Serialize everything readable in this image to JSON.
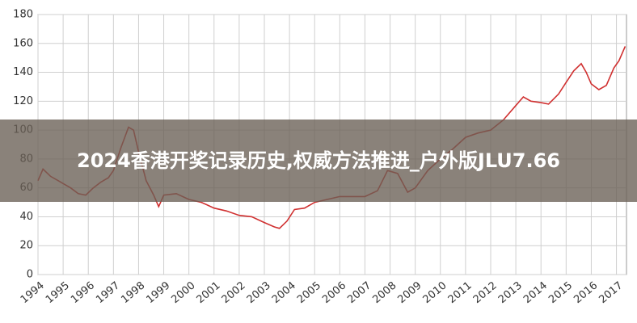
{
  "banner": {
    "title": "2024香港开奖记录历史,权威方法推进_户外版JLU7.66"
  },
  "chart_data": {
    "type": "line",
    "color": "#d03030",
    "grid": true,
    "x": [
      1994.0,
      1994.2,
      1994.5,
      1994.8,
      1995.0,
      1995.3,
      1995.6,
      1995.9,
      1996.2,
      1996.5,
      1996.8,
      1997.0,
      1997.3,
      1997.6,
      1997.8,
      1998.0,
      1998.3,
      1998.6,
      1998.8,
      1999.0,
      1999.5,
      2000.0,
      2000.5,
      2001.0,
      2001.5,
      2002.0,
      2002.5,
      2003.0,
      2003.4,
      2003.6,
      2003.9,
      2004.2,
      2004.6,
      2005.0,
      2005.5,
      2006.0,
      2006.5,
      2007.0,
      2007.5,
      2007.9,
      2008.3,
      2008.7,
      2009.0,
      2009.5,
      2010.0,
      2010.5,
      2011.0,
      2011.5,
      2012.0,
      2012.5,
      2013.0,
      2013.3,
      2013.6,
      2014.0,
      2014.3,
      2014.7,
      2015.0,
      2015.3,
      2015.6,
      2015.8,
      2016.0,
      2016.3,
      2016.6,
      2016.9,
      2017.1,
      2017.35
    ],
    "values": [
      65,
      73,
      68,
      65,
      63,
      60,
      56,
      55,
      60,
      64,
      67,
      72,
      88,
      102,
      100,
      85,
      65,
      55,
      47,
      55,
      56,
      52,
      50,
      46,
      44,
      41,
      40,
      36,
      33,
      32,
      37,
      45,
      46,
      50,
      52,
      54,
      54,
      54,
      58,
      72,
      70,
      57,
      60,
      72,
      80,
      87,
      95,
      98,
      100,
      107,
      117,
      123,
      120,
      119,
      118,
      125,
      133,
      141,
      146,
      140,
      132,
      128,
      131,
      143,
      148,
      158
    ],
    "xlim": [
      1994,
      2017.4
    ],
    "xticks": [
      1994,
      1995,
      1996,
      1997,
      1998,
      1999,
      2000,
      2001,
      2002,
      2003,
      2004,
      2005,
      2006,
      2007,
      2008,
      2009,
      2010,
      2011,
      2012,
      2013,
      2014,
      2015,
      2016,
      2017
    ],
    "ylim": [
      0,
      180
    ],
    "yticks": [
      0,
      20,
      40,
      60,
      80,
      100,
      120,
      140,
      160,
      180
    ]
  }
}
